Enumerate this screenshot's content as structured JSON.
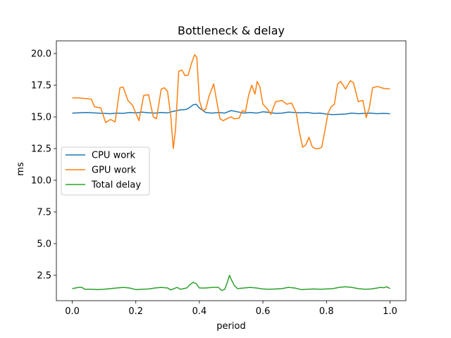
{
  "chart_data": {
    "type": "line",
    "title": "Bottleneck & delay",
    "xlabel": "period",
    "ylabel": "ms",
    "xlim": [
      -0.05,
      1.05
    ],
    "ylim": [
      0.5,
      21.0
    ],
    "xticks": [
      0.0,
      0.2,
      0.4,
      0.6,
      0.8,
      1.0
    ],
    "xtick_labels": [
      "0.0",
      "0.2",
      "0.4",
      "0.6",
      "0.8",
      "1.0"
    ],
    "yticks": [
      2.5,
      5.0,
      7.5,
      10.0,
      12.5,
      15.0,
      17.5,
      20.0
    ],
    "ytick_labels": [
      "2.5",
      "5.0",
      "7.5",
      "10.0",
      "12.5",
      "15.0",
      "17.5",
      "20.0"
    ],
    "grid": false,
    "legend_position": "center-left",
    "series": [
      {
        "name": "CPU work",
        "color": "#1f77b4",
        "points": [
          [
            0.0,
            15.3
          ],
          [
            0.02,
            15.32
          ],
          [
            0.04,
            15.35
          ],
          [
            0.06,
            15.33
          ],
          [
            0.08,
            15.3
          ],
          [
            0.1,
            15.28
          ],
          [
            0.12,
            15.25
          ],
          [
            0.14,
            15.3
          ],
          [
            0.16,
            15.28
          ],
          [
            0.18,
            15.35
          ],
          [
            0.2,
            15.32
          ],
          [
            0.22,
            15.38
          ],
          [
            0.24,
            15.33
          ],
          [
            0.26,
            15.3
          ],
          [
            0.28,
            15.35
          ],
          [
            0.3,
            15.32
          ],
          [
            0.32,
            15.45
          ],
          [
            0.34,
            15.55
          ],
          [
            0.36,
            15.6
          ],
          [
            0.37,
            15.75
          ],
          [
            0.38,
            15.95
          ],
          [
            0.39,
            16.0
          ],
          [
            0.4,
            15.7
          ],
          [
            0.42,
            15.35
          ],
          [
            0.44,
            15.3
          ],
          [
            0.46,
            15.35
          ],
          [
            0.48,
            15.3
          ],
          [
            0.5,
            15.5
          ],
          [
            0.52,
            15.4
          ],
          [
            0.54,
            15.3
          ],
          [
            0.56,
            15.35
          ],
          [
            0.58,
            15.3
          ],
          [
            0.6,
            15.4
          ],
          [
            0.62,
            15.35
          ],
          [
            0.64,
            15.28
          ],
          [
            0.66,
            15.3
          ],
          [
            0.68,
            15.38
          ],
          [
            0.7,
            15.35
          ],
          [
            0.72,
            15.32
          ],
          [
            0.74,
            15.35
          ],
          [
            0.76,
            15.28
          ],
          [
            0.78,
            15.3
          ],
          [
            0.8,
            15.22
          ],
          [
            0.82,
            15.18
          ],
          [
            0.84,
            15.2
          ],
          [
            0.86,
            15.22
          ],
          [
            0.88,
            15.3
          ],
          [
            0.9,
            15.25
          ],
          [
            0.92,
            15.28
          ],
          [
            0.94,
            15.3
          ],
          [
            0.96,
            15.25
          ],
          [
            0.98,
            15.28
          ],
          [
            1.0,
            15.25
          ]
        ]
      },
      {
        "name": "GPU work",
        "color": "#ff7f0e",
        "points": [
          [
            0.0,
            16.5
          ],
          [
            0.02,
            16.5
          ],
          [
            0.04,
            16.45
          ],
          [
            0.06,
            16.4
          ],
          [
            0.07,
            15.8
          ],
          [
            0.09,
            15.7
          ],
          [
            0.105,
            14.55
          ],
          [
            0.12,
            14.8
          ],
          [
            0.135,
            14.6
          ],
          [
            0.15,
            17.3
          ],
          [
            0.16,
            17.35
          ],
          [
            0.175,
            16.3
          ],
          [
            0.19,
            15.9
          ],
          [
            0.21,
            14.7
          ],
          [
            0.225,
            16.7
          ],
          [
            0.24,
            16.75
          ],
          [
            0.255,
            15.0
          ],
          [
            0.265,
            14.85
          ],
          [
            0.28,
            17.2
          ],
          [
            0.29,
            17.3
          ],
          [
            0.3,
            17.0
          ],
          [
            0.31,
            15.1
          ],
          [
            0.318,
            12.5
          ],
          [
            0.325,
            14.0
          ],
          [
            0.335,
            18.6
          ],
          [
            0.345,
            18.7
          ],
          [
            0.355,
            18.25
          ],
          [
            0.365,
            18.3
          ],
          [
            0.375,
            19.2
          ],
          [
            0.385,
            19.9
          ],
          [
            0.392,
            19.7
          ],
          [
            0.4,
            16.3
          ],
          [
            0.41,
            15.5
          ],
          [
            0.42,
            15.6
          ],
          [
            0.43,
            16.6
          ],
          [
            0.445,
            17.6
          ],
          [
            0.455,
            16.2
          ],
          [
            0.465,
            14.85
          ],
          [
            0.475,
            14.7
          ],
          [
            0.49,
            14.9
          ],
          [
            0.5,
            15.0
          ],
          [
            0.51,
            14.85
          ],
          [
            0.525,
            14.9
          ],
          [
            0.535,
            15.5
          ],
          [
            0.545,
            15.4
          ],
          [
            0.555,
            16.7
          ],
          [
            0.565,
            17.5
          ],
          [
            0.575,
            16.8
          ],
          [
            0.582,
            17.8
          ],
          [
            0.59,
            17.4
          ],
          [
            0.6,
            16.0
          ],
          [
            0.615,
            15.6
          ],
          [
            0.625,
            15.2
          ],
          [
            0.64,
            16.2
          ],
          [
            0.66,
            16.3
          ],
          [
            0.675,
            16.0
          ],
          [
            0.69,
            16.1
          ],
          [
            0.705,
            15.3
          ],
          [
            0.715,
            13.8
          ],
          [
            0.725,
            12.6
          ],
          [
            0.735,
            12.8
          ],
          [
            0.745,
            13.4
          ],
          [
            0.755,
            12.65
          ],
          [
            0.765,
            12.5
          ],
          [
            0.775,
            12.5
          ],
          [
            0.785,
            12.6
          ],
          [
            0.795,
            13.9
          ],
          [
            0.805,
            15.3
          ],
          [
            0.815,
            15.8
          ],
          [
            0.825,
            16.0
          ],
          [
            0.835,
            17.6
          ],
          [
            0.845,
            17.8
          ],
          [
            0.86,
            17.2
          ],
          [
            0.875,
            17.85
          ],
          [
            0.885,
            17.7
          ],
          [
            0.9,
            16.2
          ],
          [
            0.915,
            16.3
          ],
          [
            0.925,
            14.95
          ],
          [
            0.935,
            15.7
          ],
          [
            0.945,
            17.3
          ],
          [
            0.96,
            17.4
          ],
          [
            0.98,
            17.25
          ],
          [
            1.0,
            17.2
          ]
        ]
      },
      {
        "name": "Total delay",
        "color": "#2ca02c",
        "points": [
          [
            0.0,
            1.45
          ],
          [
            0.01,
            1.5
          ],
          [
            0.02,
            1.55
          ],
          [
            0.03,
            1.55
          ],
          [
            0.04,
            1.4
          ],
          [
            0.06,
            1.4
          ],
          [
            0.08,
            1.38
          ],
          [
            0.1,
            1.4
          ],
          [
            0.12,
            1.45
          ],
          [
            0.14,
            1.5
          ],
          [
            0.16,
            1.55
          ],
          [
            0.18,
            1.5
          ],
          [
            0.2,
            1.38
          ],
          [
            0.22,
            1.4
          ],
          [
            0.24,
            1.42
          ],
          [
            0.26,
            1.5
          ],
          [
            0.28,
            1.55
          ],
          [
            0.3,
            1.5
          ],
          [
            0.31,
            1.35
          ],
          [
            0.32,
            1.45
          ],
          [
            0.33,
            1.55
          ],
          [
            0.34,
            1.4
          ],
          [
            0.35,
            1.45
          ],
          [
            0.36,
            1.5
          ],
          [
            0.37,
            1.75
          ],
          [
            0.38,
            1.95
          ],
          [
            0.39,
            1.85
          ],
          [
            0.4,
            1.5
          ],
          [
            0.42,
            1.5
          ],
          [
            0.44,
            1.55
          ],
          [
            0.46,
            1.55
          ],
          [
            0.47,
            1.3
          ],
          [
            0.48,
            1.4
          ],
          [
            0.49,
            2.1
          ],
          [
            0.495,
            2.5
          ],
          [
            0.5,
            2.2
          ],
          [
            0.51,
            1.7
          ],
          [
            0.52,
            1.45
          ],
          [
            0.54,
            1.5
          ],
          [
            0.56,
            1.55
          ],
          [
            0.58,
            1.5
          ],
          [
            0.6,
            1.42
          ],
          [
            0.62,
            1.4
          ],
          [
            0.64,
            1.42
          ],
          [
            0.66,
            1.45
          ],
          [
            0.68,
            1.55
          ],
          [
            0.7,
            1.5
          ],
          [
            0.72,
            1.38
          ],
          [
            0.74,
            1.4
          ],
          [
            0.76,
            1.42
          ],
          [
            0.78,
            1.4
          ],
          [
            0.8,
            1.42
          ],
          [
            0.82,
            1.45
          ],
          [
            0.84,
            1.55
          ],
          [
            0.86,
            1.6
          ],
          [
            0.88,
            1.55
          ],
          [
            0.9,
            1.45
          ],
          [
            0.92,
            1.4
          ],
          [
            0.94,
            1.42
          ],
          [
            0.96,
            1.5
          ],
          [
            0.97,
            1.55
          ],
          [
            0.98,
            1.52
          ],
          [
            0.99,
            1.6
          ],
          [
            1.0,
            1.45
          ]
        ]
      }
    ]
  }
}
